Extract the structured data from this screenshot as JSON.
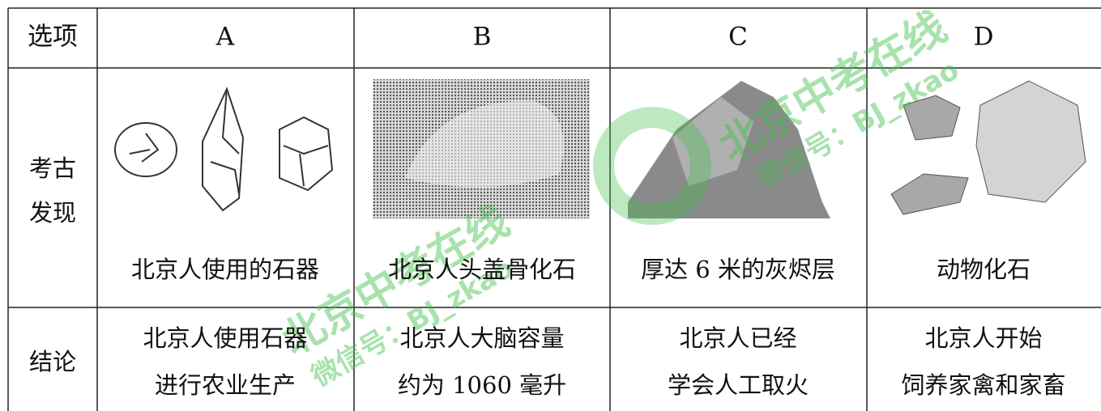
{
  "table": {
    "header": [
      "选项",
      "A",
      "B",
      "C",
      "D"
    ],
    "rows": [
      {
        "label": [
          "考古",
          "发现"
        ],
        "cells": [
          "北京人使用的石器",
          "北京人头盖骨化石",
          "厚达 6 米的灰烬层",
          "动物化石"
        ]
      },
      {
        "label": [
          "结论"
        ],
        "cells": [
          [
            "北京人使用石器",
            "进行农业生产"
          ],
          [
            "北京人大脑容量",
            "约为 1060 毫升"
          ],
          [
            "北京人已经",
            "学会人工取火"
          ],
          [
            "北京人开始",
            "饲养家禽和家畜"
          ]
        ]
      }
    ]
  },
  "watermark": {
    "name": "北京中考在线",
    "wechat": "微信号：BJ_zkao"
  }
}
